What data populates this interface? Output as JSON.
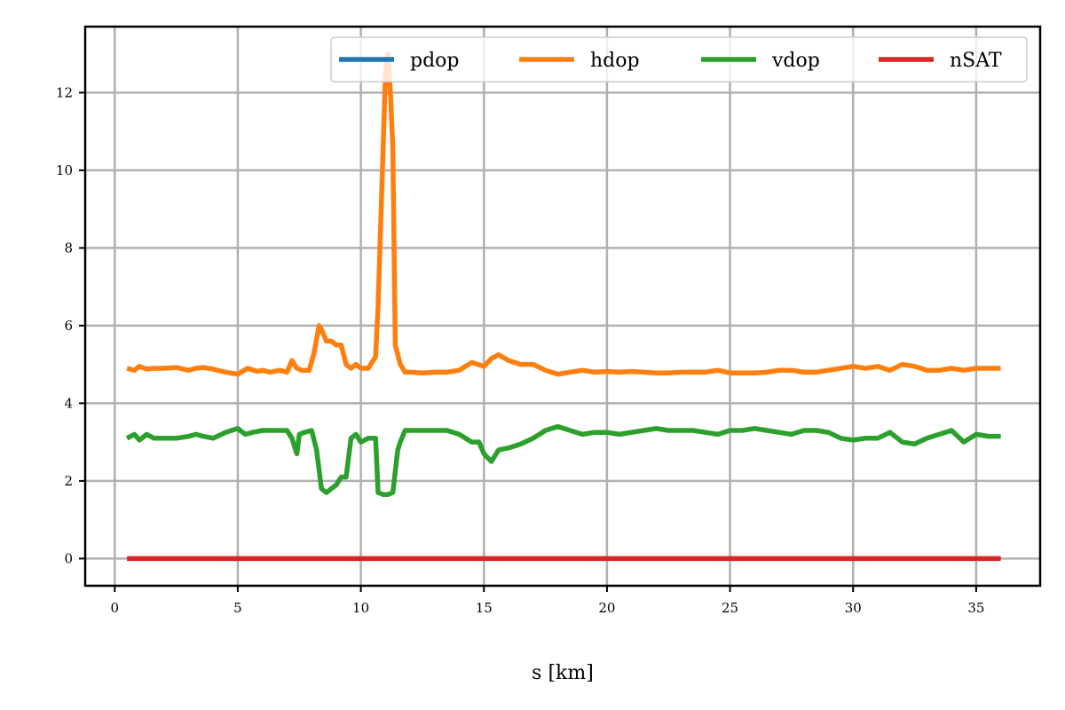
{
  "chart_data": {
    "type": "line",
    "title": "",
    "xlabel": "s [km]",
    "ylabel": "",
    "xlim": [
      -1.2,
      37.6
    ],
    "ylim": [
      -0.7,
      13.7
    ],
    "x_ticks": [
      0,
      5,
      10,
      15,
      20,
      25,
      30,
      35
    ],
    "y_ticks": [
      0,
      2,
      4,
      6,
      8,
      10,
      12
    ],
    "grid": true,
    "legend_placement": "top-right",
    "series": [
      {
        "name": "pdop",
        "color": "#1f77b4",
        "x": [],
        "y": []
      },
      {
        "name": "hdop",
        "color": "#ff7f0e",
        "x": [
          0.5,
          0.8,
          1.0,
          1.3,
          1.6,
          2.0,
          2.5,
          3.0,
          3.3,
          3.6,
          4.0,
          4.5,
          5.0,
          5.4,
          5.8,
          6.0,
          6.3,
          6.7,
          7.0,
          7.2,
          7.4,
          7.6,
          7.9,
          8.1,
          8.3,
          8.4,
          8.6,
          8.8,
          9.0,
          9.2,
          9.4,
          9.6,
          9.8,
          10.0,
          10.3,
          10.6,
          10.7,
          10.8,
          10.9,
          11.0,
          11.1,
          11.2,
          11.3,
          11.4,
          11.6,
          11.8,
          12.0,
          12.5,
          13.0,
          13.5,
          14.0,
          14.5,
          15.0,
          15.3,
          15.6,
          16.0,
          16.5,
          17.0,
          17.5,
          18.0,
          18.5,
          19.0,
          19.5,
          20.0,
          20.5,
          21.0,
          21.5,
          22.0,
          22.5,
          23.0,
          23.5,
          24.0,
          24.5,
          25.0,
          25.5,
          26.0,
          26.5,
          27.0,
          27.5,
          28.0,
          28.5,
          29.0,
          29.5,
          30.0,
          30.5,
          31.0,
          31.5,
          32.0,
          32.5,
          33.0,
          33.5,
          34.0,
          34.5,
          35.0,
          35.5,
          36.0
        ],
        "y": [
          4.9,
          4.85,
          4.95,
          4.88,
          4.9,
          4.9,
          4.92,
          4.85,
          4.9,
          4.92,
          4.88,
          4.8,
          4.75,
          4.9,
          4.82,
          4.85,
          4.8,
          4.85,
          4.8,
          5.1,
          4.9,
          4.85,
          4.85,
          5.3,
          6.0,
          5.9,
          5.6,
          5.6,
          5.5,
          5.5,
          5.0,
          4.9,
          5.0,
          4.9,
          4.9,
          5.2,
          6.5,
          8.5,
          10.5,
          12.5,
          13.0,
          12.0,
          10.6,
          5.5,
          5.0,
          4.8,
          4.8,
          4.78,
          4.8,
          4.8,
          4.85,
          5.05,
          4.95,
          5.15,
          5.25,
          5.1,
          5.0,
          5.0,
          4.85,
          4.75,
          4.8,
          4.85,
          4.8,
          4.82,
          4.8,
          4.82,
          4.8,
          4.78,
          4.78,
          4.8,
          4.8,
          4.8,
          4.85,
          4.78,
          4.78,
          4.78,
          4.8,
          4.85,
          4.85,
          4.8,
          4.8,
          4.85,
          4.9,
          4.95,
          4.9,
          4.95,
          4.85,
          5.0,
          4.95,
          4.85,
          4.85,
          4.9,
          4.85,
          4.9,
          4.9,
          4.9
        ]
      },
      {
        "name": "vdop",
        "color": "#2ca02c",
        "x": [
          0.5,
          0.8,
          1.0,
          1.3,
          1.6,
          2.0,
          2.5,
          3.0,
          3.3,
          3.6,
          4.0,
          4.5,
          5.0,
          5.3,
          5.6,
          6.0,
          6.5,
          7.0,
          7.2,
          7.4,
          7.5,
          7.7,
          8.0,
          8.2,
          8.4,
          8.6,
          8.8,
          9.0,
          9.2,
          9.4,
          9.6,
          9.8,
          10.0,
          10.3,
          10.5,
          10.6,
          10.7,
          10.9,
          11.1,
          11.3,
          11.5,
          11.6,
          11.8,
          12.0,
          12.5,
          13.0,
          13.5,
          14.0,
          14.5,
          14.8,
          15.0,
          15.3,
          15.6,
          16.0,
          16.5,
          17.0,
          17.5,
          18.0,
          18.5,
          19.0,
          19.5,
          20.0,
          20.5,
          21.0,
          21.5,
          22.0,
          22.5,
          23.0,
          23.5,
          24.0,
          24.5,
          25.0,
          25.5,
          26.0,
          26.5,
          27.0,
          27.5,
          28.0,
          28.5,
          29.0,
          29.5,
          30.0,
          30.5,
          31.0,
          31.5,
          32.0,
          32.5,
          33.0,
          33.5,
          34.0,
          34.5,
          35.0,
          35.5,
          36.0
        ],
        "y": [
          3.1,
          3.2,
          3.05,
          3.2,
          3.1,
          3.1,
          3.1,
          3.15,
          3.2,
          3.15,
          3.1,
          3.25,
          3.35,
          3.2,
          3.25,
          3.3,
          3.3,
          3.3,
          3.1,
          2.7,
          3.2,
          3.25,
          3.3,
          2.8,
          1.8,
          1.7,
          1.8,
          1.9,
          2.1,
          2.1,
          3.1,
          3.2,
          3.0,
          3.1,
          3.1,
          3.1,
          1.7,
          1.65,
          1.65,
          1.7,
          2.8,
          3.0,
          3.3,
          3.3,
          3.3,
          3.3,
          3.3,
          3.2,
          3.0,
          3.0,
          2.7,
          2.5,
          2.8,
          2.85,
          2.95,
          3.1,
          3.3,
          3.4,
          3.3,
          3.2,
          3.25,
          3.25,
          3.2,
          3.25,
          3.3,
          3.35,
          3.3,
          3.3,
          3.3,
          3.25,
          3.2,
          3.3,
          3.3,
          3.35,
          3.3,
          3.25,
          3.2,
          3.3,
          3.3,
          3.25,
          3.1,
          3.05,
          3.1,
          3.1,
          3.25,
          3.0,
          2.95,
          3.1,
          3.2,
          3.3,
          3.0,
          3.2,
          3.15,
          3.15
        ]
      },
      {
        "name": "nSAT",
        "color": "#d62728",
        "x": [
          0.5,
          36.0
        ],
        "y": [
          0,
          0
        ]
      }
    ]
  }
}
